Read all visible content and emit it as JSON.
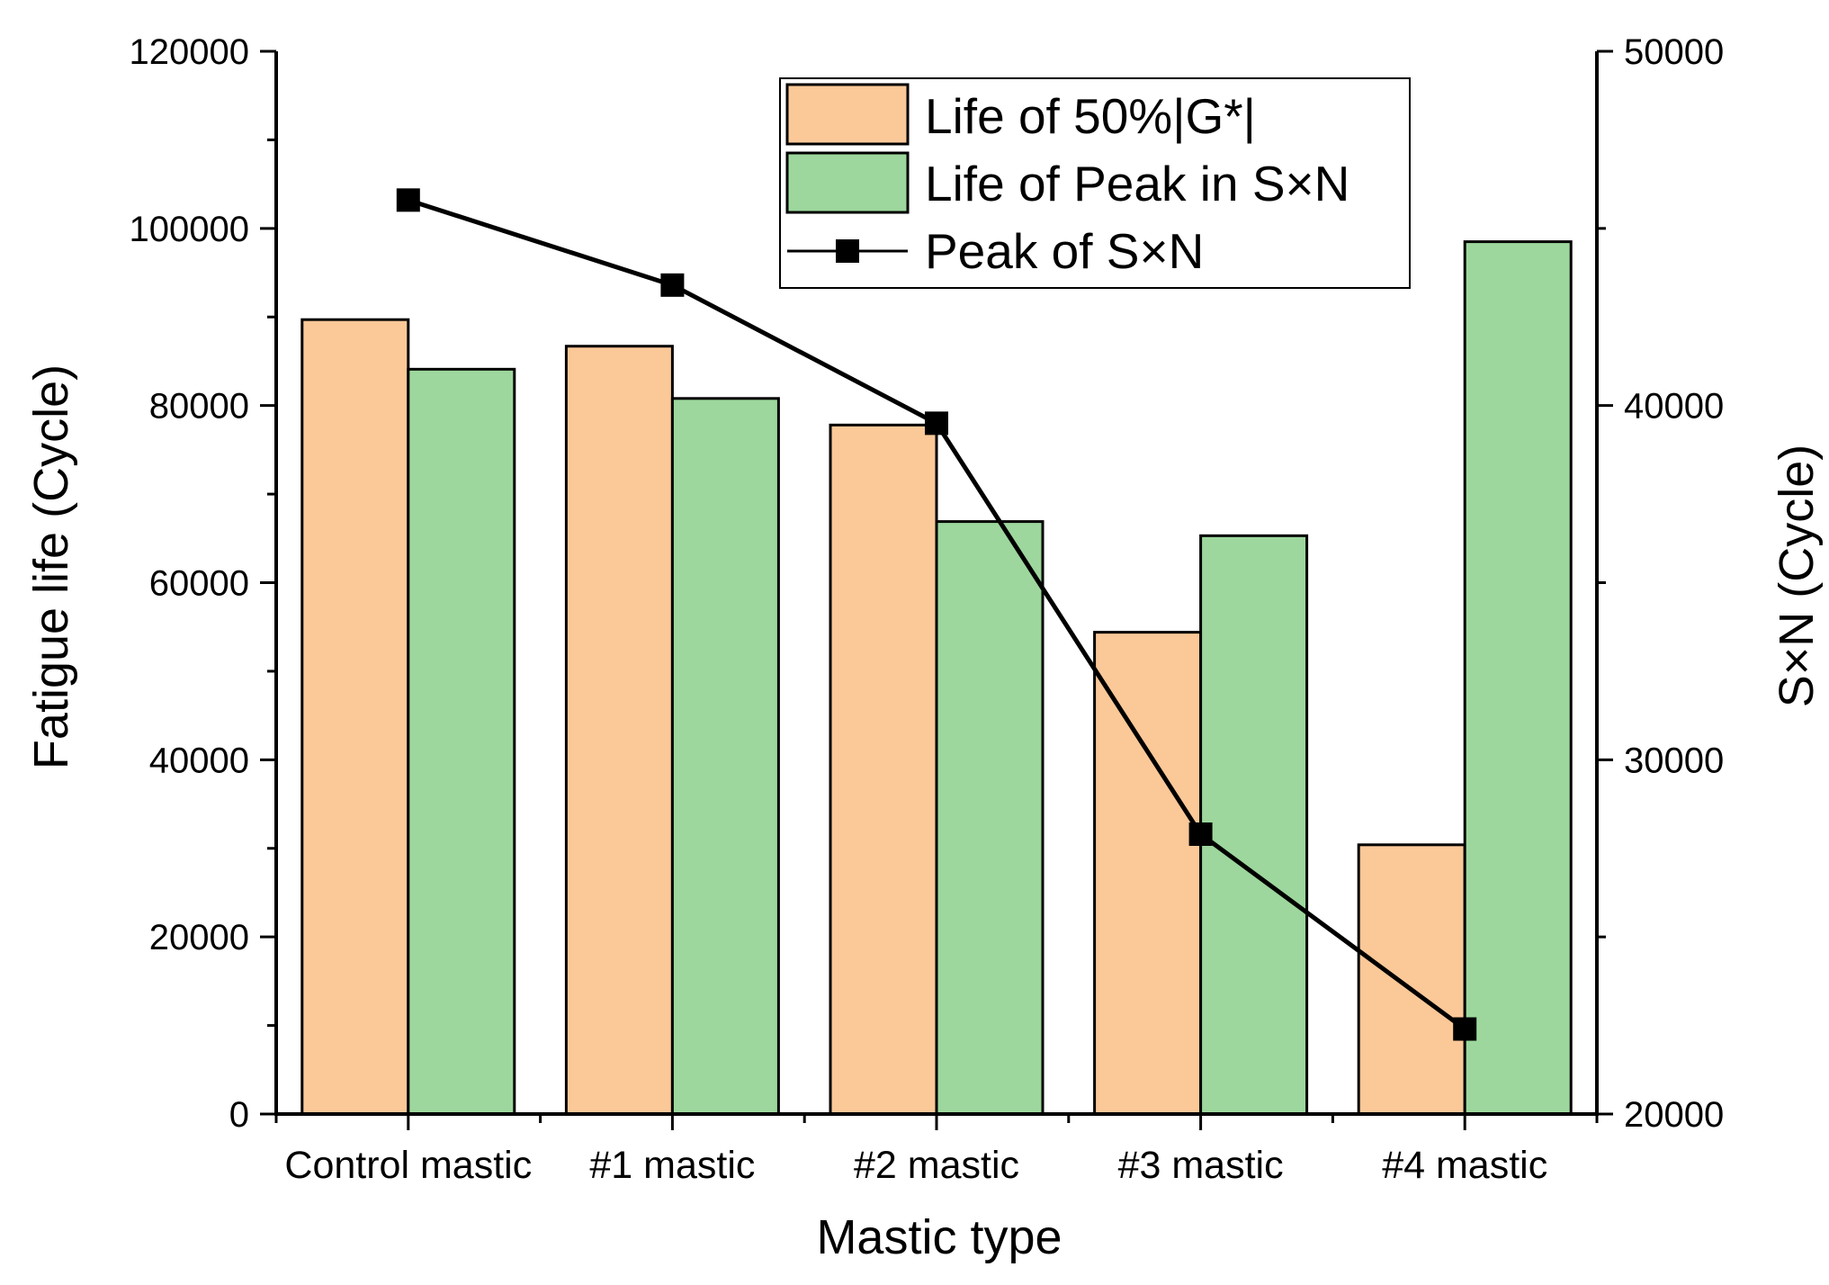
{
  "chart_data": {
    "type": "bar",
    "xlabel": "Mastic type",
    "ylabel": "Fatigue life (Cycle)",
    "y2label": "S×N (Cycle)",
    "categories": [
      "Control mastic",
      "#1 mastic",
      "#2 mastic",
      "#3 mastic",
      "#4 mastic"
    ],
    "ylim": [
      0,
      120000
    ],
    "y2lim": [
      20000,
      50000
    ],
    "yticks": [
      "0",
      "20000",
      "40000",
      "60000",
      "80000",
      "100000",
      "120000"
    ],
    "y2ticks": [
      "20000",
      "30000",
      "40000",
      "50000"
    ],
    "legend_position": "top-right",
    "series": [
      {
        "name": "Life of 50%|G*|",
        "type": "bar",
        "axis": "left",
        "color": "#fbc898",
        "values": [
          89700,
          86700,
          77800,
          54400,
          30400
        ]
      },
      {
        "name": "Life of Peak in S×N",
        "type": "bar",
        "axis": "left",
        "color": "#9dd79d",
        "values": [
          84100,
          80800,
          66900,
          65300,
          98500
        ]
      },
      {
        "name": "Peak of S×N",
        "type": "line",
        "axis": "right",
        "color": "#000000",
        "marker": "square",
        "values": [
          45800,
          43400,
          39500,
          27900,
          22400
        ]
      }
    ]
  }
}
